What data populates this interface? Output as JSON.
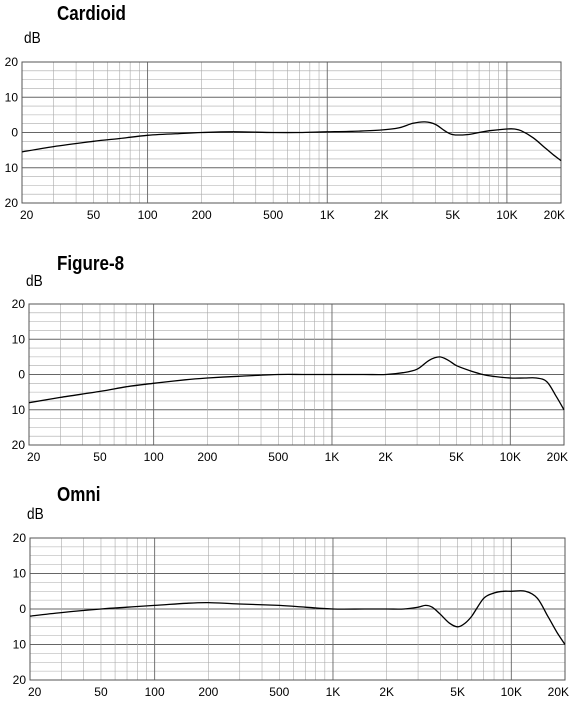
{
  "chart_data": [
    {
      "type": "line",
      "title": "Cardioid",
      "ylabel": "dB",
      "xscale": "log",
      "xlim": [
        20,
        20000
      ],
      "ylim": [
        -20,
        20
      ],
      "grid": true,
      "x_tick_labels": [
        "20",
        "50",
        "100",
        "200",
        "500",
        "1K",
        "2K",
        "5K",
        "10K",
        "20K"
      ],
      "y_tick_labels": [
        "20",
        "10",
        "0",
        "10",
        "20"
      ],
      "series": [
        {
          "x": [
            20,
            30,
            50,
            70,
            100,
            150,
            200,
            300,
            500,
            700,
            1000,
            1500,
            2000,
            2500,
            3000,
            3500,
            4000,
            4500,
            5000,
            6000,
            7000,
            8000,
            10000,
            11000,
            12000,
            14000,
            16000,
            18000,
            20000
          ],
          "y": [
            -5.5,
            -4,
            -2.5,
            -1.7,
            -0.8,
            -0.3,
            0,
            0.2,
            0,
            0,
            0.2,
            0.4,
            0.7,
            1.3,
            2.6,
            3,
            2.3,
            0.5,
            -0.6,
            -0.6,
            0,
            0.5,
            1,
            1,
            0.5,
            -1.5,
            -4,
            -6.2,
            -8
          ]
        }
      ]
    },
    {
      "type": "line",
      "title": "Figure-8",
      "ylabel": "dB",
      "xscale": "log",
      "xlim": [
        20,
        20000
      ],
      "ylim": [
        -20,
        20
      ],
      "grid": true,
      "x_tick_labels": [
        "20",
        "50",
        "100",
        "200",
        "500",
        "1K",
        "2K",
        "5K",
        "10K",
        "20K"
      ],
      "y_tick_labels": [
        "20",
        "10",
        "0",
        "10",
        "20"
      ],
      "series": [
        {
          "x": [
            20,
            30,
            50,
            70,
            100,
            150,
            200,
            300,
            500,
            700,
            1000,
            1500,
            2000,
            2500,
            3000,
            3500,
            4000,
            4500,
            5000,
            6000,
            7000,
            8000,
            10000,
            12000,
            14000,
            16000,
            18000,
            20000
          ],
          "y": [
            -8,
            -6.5,
            -4.8,
            -3.5,
            -2.5,
            -1.5,
            -1,
            -0.5,
            0,
            0,
            0,
            0,
            0,
            0.5,
            1.5,
            4,
            5,
            4,
            2.5,
            1,
            0,
            -0.5,
            -1,
            -1,
            -1,
            -2,
            -6,
            -10
          ]
        }
      ]
    },
    {
      "type": "line",
      "title": "Omni",
      "ylabel": "dB",
      "xscale": "log",
      "xlim": [
        20,
        20000
      ],
      "ylim": [
        -20,
        20
      ],
      "grid": true,
      "x_tick_labels": [
        "20",
        "50",
        "100",
        "200",
        "500",
        "1K",
        "2K",
        "5K",
        "10K",
        "20K"
      ],
      "y_tick_labels": [
        "20",
        "10",
        "0",
        "10",
        "20"
      ],
      "series": [
        {
          "x": [
            20,
            30,
            50,
            70,
            100,
            150,
            200,
            300,
            500,
            700,
            1000,
            1500,
            2000,
            2500,
            3000,
            3300,
            3600,
            4000,
            4500,
            5000,
            5500,
            6000,
            7000,
            8000,
            9000,
            10000,
            12000,
            14000,
            16000,
            18000,
            20000
          ],
          "y": [
            -2,
            -1,
            0,
            0.5,
            1,
            1.6,
            1.8,
            1.4,
            1,
            0.5,
            0,
            0,
            0,
            0,
            0.5,
            1,
            0.5,
            -1.5,
            -4,
            -5,
            -4,
            -2,
            3,
            4.5,
            5,
            5,
            5,
            3,
            -2,
            -6.5,
            -10
          ]
        }
      ]
    }
  ]
}
